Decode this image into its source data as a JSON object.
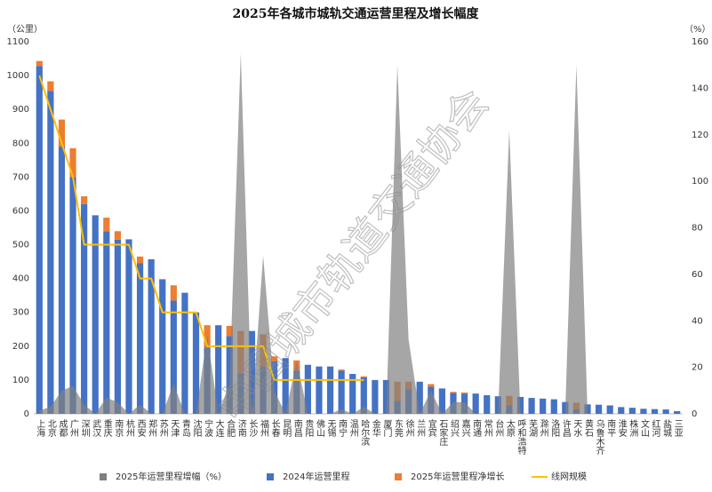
{
  "chart_data": {
    "type": "bar",
    "title": "2025年各城市城轨交通运营里程及增长幅度",
    "y_label": "（公里）",
    "y2_label": "（%）",
    "watermark": "中国城市轨道交通协会",
    "categories": [
      "上海",
      "北京",
      "成都",
      "广州",
      "深圳",
      "武汉",
      "重庆",
      "南京",
      "杭州",
      "西安",
      "郑州",
      "苏州",
      "天津",
      "青岛",
      "沈阳",
      "宁波",
      "大连",
      "合肥",
      "济南",
      "长沙",
      "福州",
      "长春",
      "昆明",
      "南昌",
      "贵阳",
      "佛山",
      "无锡",
      "南宁",
      "温州",
      "哈尔滨",
      "金华",
      "厦门",
      "东莞",
      "徐州",
      "兰州",
      "宜宾",
      "石家庄",
      "绍兴",
      "嘉兴",
      "南通",
      "常州",
      "台州",
      "太原",
      "呼和浩特",
      "芜湖",
      "滁州",
      "洛阳",
      "许昌",
      "天水",
      "黄石",
      "乌鲁木齐",
      "南平",
      "淮安",
      "株洲",
      "文山",
      "红河",
      "盐城",
      "三亚"
    ],
    "series": [
      {
        "name": "2025年运营里程增幅（%）",
        "type": "area",
        "axis": "y2",
        "color": "#808080",
        "values": [
          1.5,
          3,
          10,
          12,
          4,
          0,
          7,
          5,
          0,
          4,
          0,
          0,
          13,
          0,
          0,
          34,
          0,
          13,
          155,
          0,
          68,
          10,
          0,
          23,
          0,
          0,
          0,
          2,
          0,
          3,
          0,
          0,
          150,
          32,
          0,
          10,
          0,
          5,
          5,
          0,
          0,
          0,
          122,
          0,
          0,
          0,
          0,
          0,
          150,
          0,
          0,
          0,
          0,
          0,
          0,
          0,
          0,
          0
        ]
      },
      {
        "name": "2024年运营里程",
        "type": "bar",
        "color": "#4472c4",
        "values": [
          1028,
          955,
          790,
          700,
          620,
          587,
          540,
          515,
          516,
          445,
          457,
          398,
          335,
          358,
          300,
          196,
          262,
          230,
          120,
          245,
          140,
          155,
          165,
          128,
          145,
          140,
          140,
          128,
          118,
          108,
          100,
          100,
          38,
          72,
          95,
          80,
          75,
          62,
          60,
          60,
          55,
          52,
          25,
          50,
          47,
          45,
          43,
          35,
          13,
          28,
          27,
          25,
          20,
          18,
          15,
          14,
          13,
          8
        ]
      },
      {
        "name": "2025年运营里程净增长",
        "type": "bar",
        "color": "#ed7d31",
        "values": [
          15,
          28,
          80,
          85,
          23,
          0,
          40,
          25,
          0,
          20,
          0,
          0,
          45,
          0,
          0,
          66,
          0,
          30,
          125,
          0,
          95,
          15,
          0,
          30,
          0,
          0,
          0,
          3,
          0,
          3,
          0,
          0,
          57,
          23,
          0,
          8,
          0,
          3,
          3,
          0,
          0,
          0,
          28,
          0,
          0,
          0,
          0,
          0,
          20,
          0,
          0,
          0,
          0,
          0,
          0,
          0,
          0,
          0
        ]
      },
      {
        "name": "线网规模",
        "type": "line",
        "color": "#ffc000",
        "values": [
          1000,
          900,
          800,
          700,
          500,
          500,
          500,
          500,
          500,
          400,
          400,
          300,
          300,
          300,
          300,
          200,
          200,
          200,
          200,
          200,
          200,
          100,
          100,
          100,
          100,
          100,
          100,
          100,
          100,
          100,
          null,
          null,
          null,
          null,
          null,
          null,
          null,
          null,
          null,
          null,
          null,
          null,
          null,
          null,
          null,
          null,
          null,
          null,
          null,
          null,
          null,
          null,
          null,
          null,
          null,
          null,
          null,
          null
        ]
      }
    ],
    "ylim": [
      0,
      1100
    ],
    "yticks": [
      0,
      100,
      200,
      300,
      400,
      500,
      600,
      700,
      800,
      900,
      1000,
      1100
    ],
    "y2lim": [
      0,
      160
    ],
    "y2ticks": [
      0,
      20,
      40,
      60,
      80,
      100,
      120,
      140,
      160
    ]
  }
}
